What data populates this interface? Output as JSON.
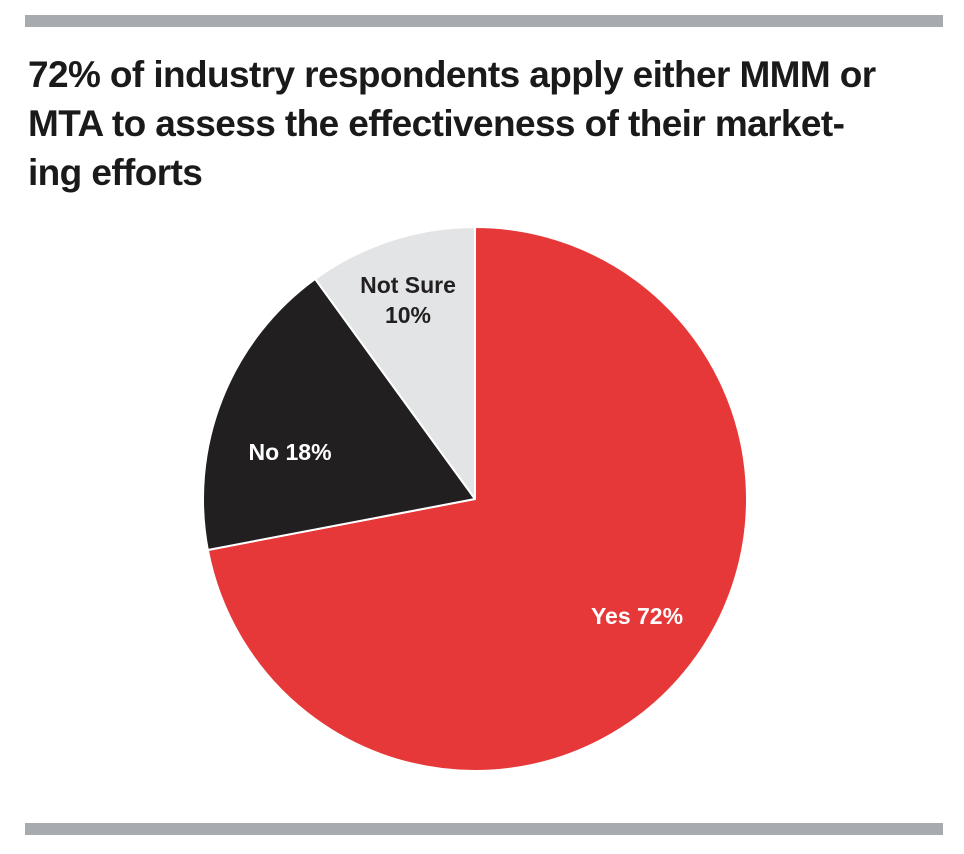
{
  "chart_data": {
    "type": "pie",
    "title_lines": [
      "72% of industry respondents apply either MMM or",
      "MTA to assess the effectiveness of their market-",
      "ing efforts"
    ],
    "slices": [
      {
        "name": "Yes",
        "value": 72,
        "color": "#e63839",
        "label_lines": [
          "Yes 72%"
        ],
        "label_color": "#ffffff"
      },
      {
        "name": "No",
        "value": 18,
        "color": "#221f20",
        "label_lines": [
          "No 18%"
        ],
        "label_color": "#ffffff"
      },
      {
        "name": "Not Sure",
        "value": 10,
        "color": "#e3e4e6",
        "label_lines": [
          "Not Sure",
          "10%"
        ],
        "label_color": "#221f20"
      }
    ],
    "start_angle": "12 o'clock",
    "direction": "clockwise",
    "legend": "none"
  }
}
